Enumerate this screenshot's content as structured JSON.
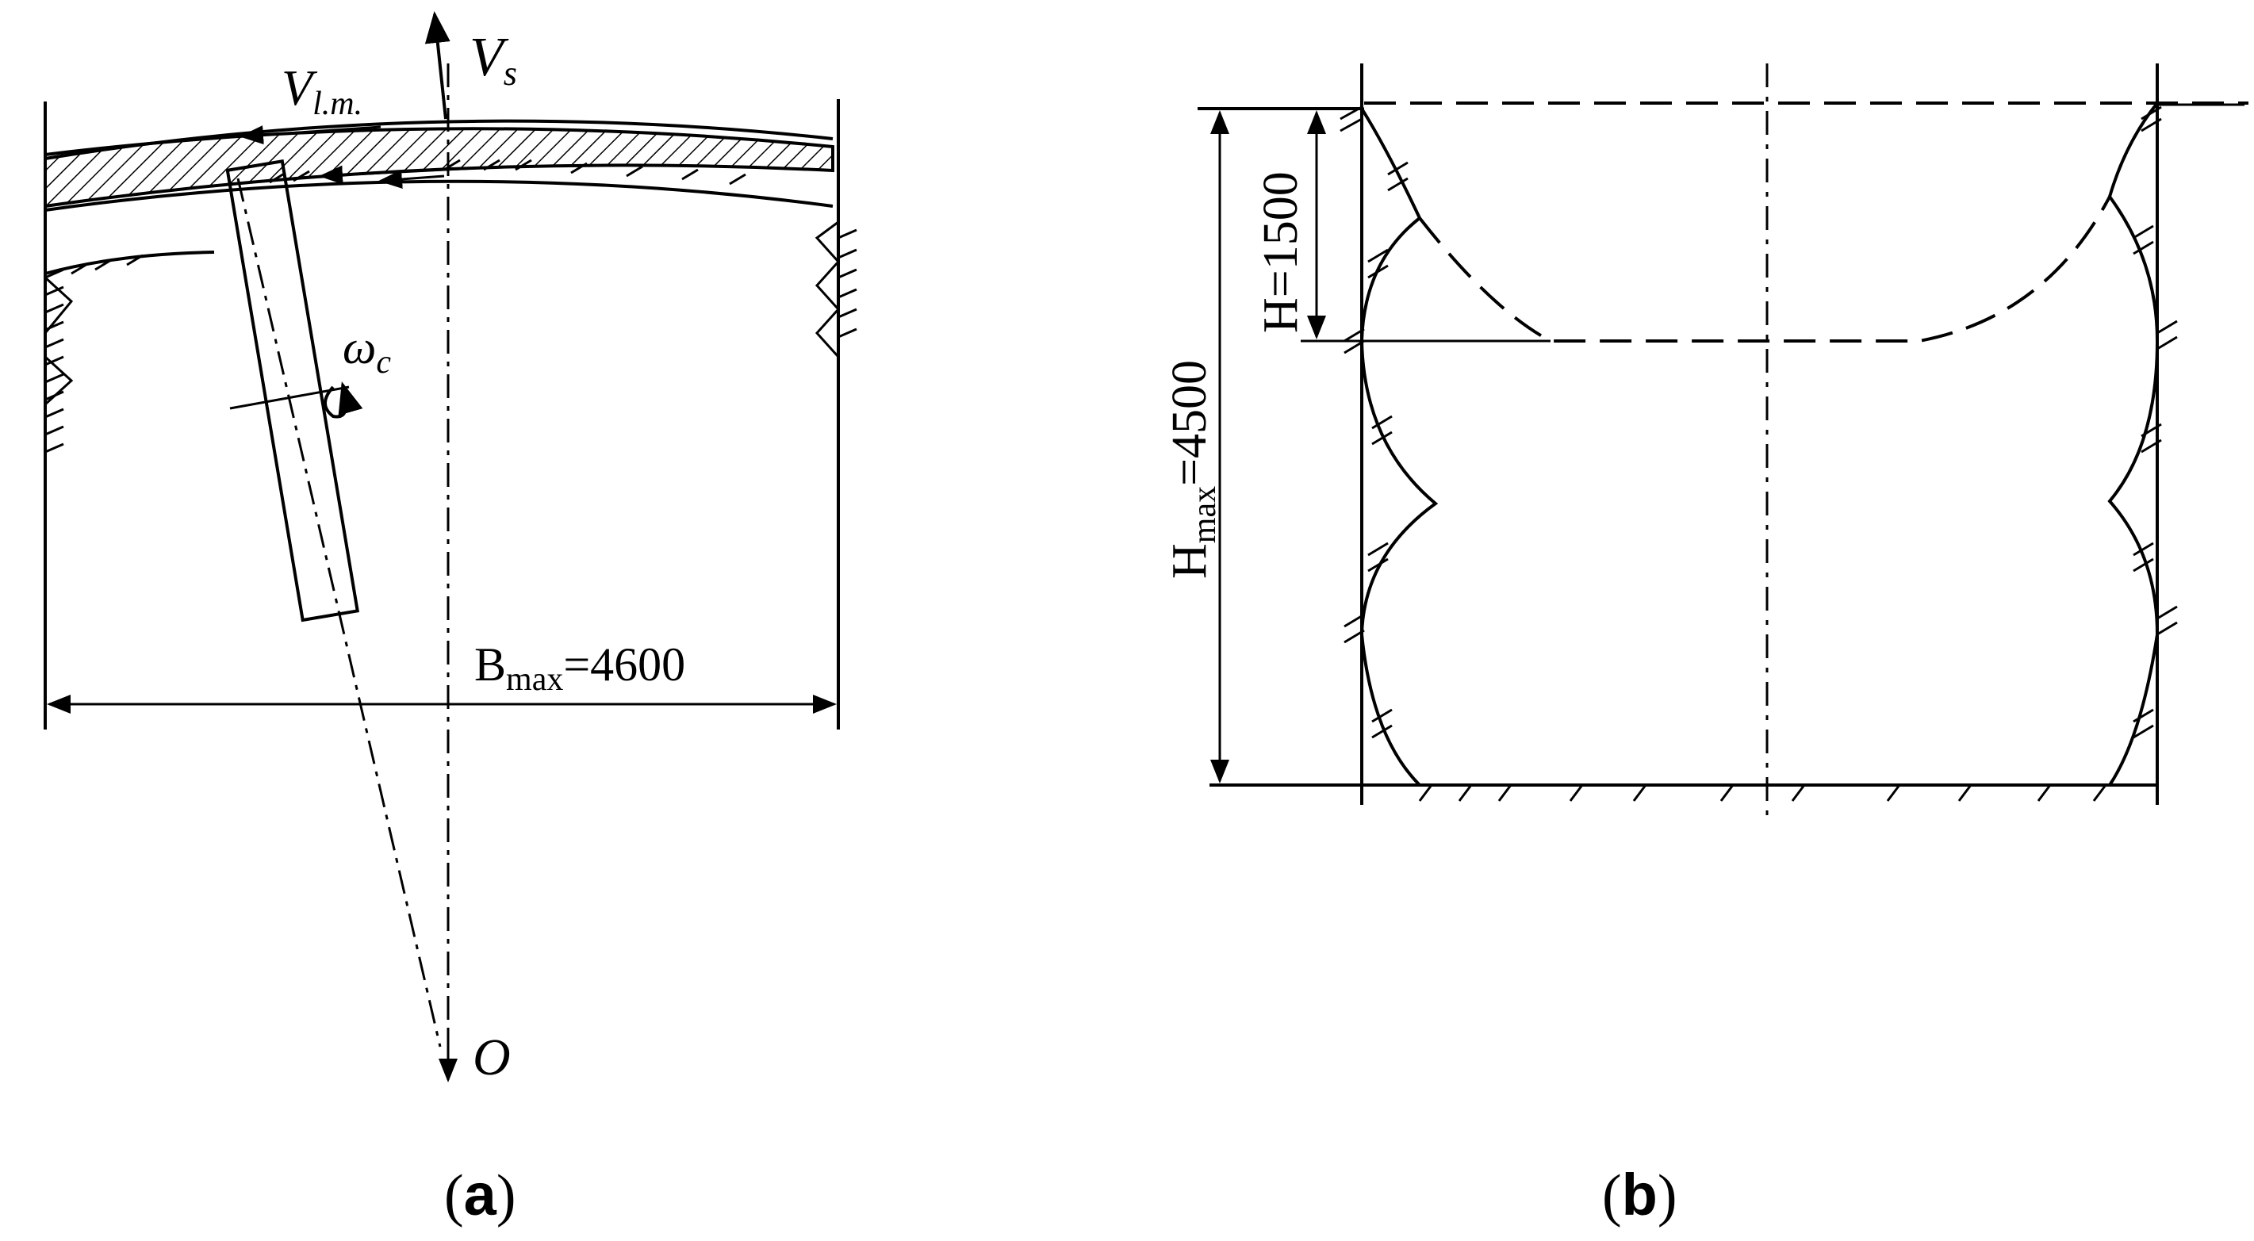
{
  "panel_a": {
    "caption_open": "(",
    "caption_letter": "a",
    "caption_close": ")",
    "label_vs_main": "V",
    "label_vs_sub": "s",
    "label_vlm_main": "V",
    "label_vlm_sub": "l.m.",
    "label_omega_main": "ω",
    "label_omega_sub": "c",
    "label_origin": "O",
    "width_main": "B",
    "width_sub": "max",
    "width_value": "=4600"
  },
  "panel_b": {
    "caption_open": "(",
    "caption_letter": "b",
    "caption_close": ")",
    "height_small_label": "H=1500",
    "height_max_main": "H",
    "height_max_sub": "max",
    "height_max_value": "=4500"
  }
}
